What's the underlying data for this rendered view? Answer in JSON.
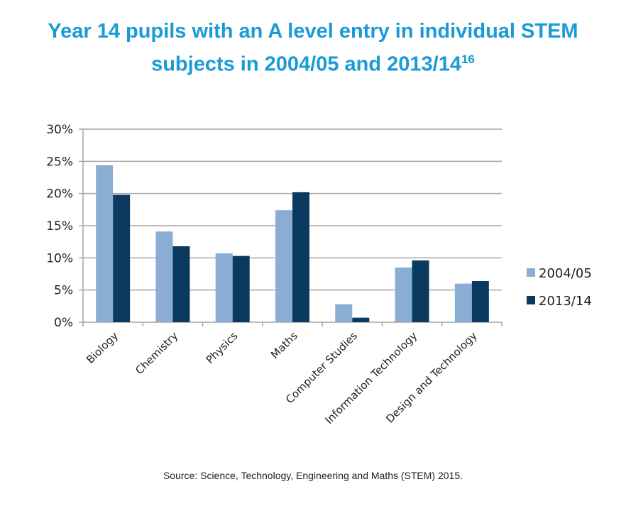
{
  "title": "Year 14 pupils with an A level entry in individual STEM subjects in 2004/05 and 2013/14",
  "title_line1": "Year 14 pupils with an A level entry in individual STEM",
  "title_line2": "subjects in 2004/05 and 2013/14",
  "title_footnote": "16",
  "source": "Source: Science, Technology, Engineering and Maths (STEM) 2015.",
  "colors": {
    "title": "#1a9ad6",
    "series_2004": "#8aadd4",
    "series_2013": "#0b3a60",
    "grid": "#a6a6a6"
  },
  "chart_data": {
    "type": "bar",
    "title": "Year 14 pupils with an A level entry in individual STEM subjects in 2004/05 and 2013/14",
    "categories": [
      "Biology",
      "Chemistry",
      "Physics",
      "Maths",
      "Computer Studies",
      "Information Technology",
      "Design and Technology"
    ],
    "series": [
      {
        "name": "2004/05",
        "color": "#8aadd4",
        "values": [
          24.4,
          14.1,
          10.7,
          17.4,
          2.8,
          8.5,
          6.0
        ]
      },
      {
        "name": "2013/14",
        "color": "#0b3a60",
        "values": [
          19.8,
          11.8,
          10.3,
          20.2,
          0.7,
          9.6,
          6.4
        ]
      }
    ],
    "xlabel": "",
    "ylabel": "",
    "ylim": [
      0,
      30
    ],
    "yticks": [
      "0%",
      "5%",
      "10%",
      "15%",
      "20%",
      "25%",
      "30%"
    ],
    "grid": true,
    "legend": "right"
  }
}
